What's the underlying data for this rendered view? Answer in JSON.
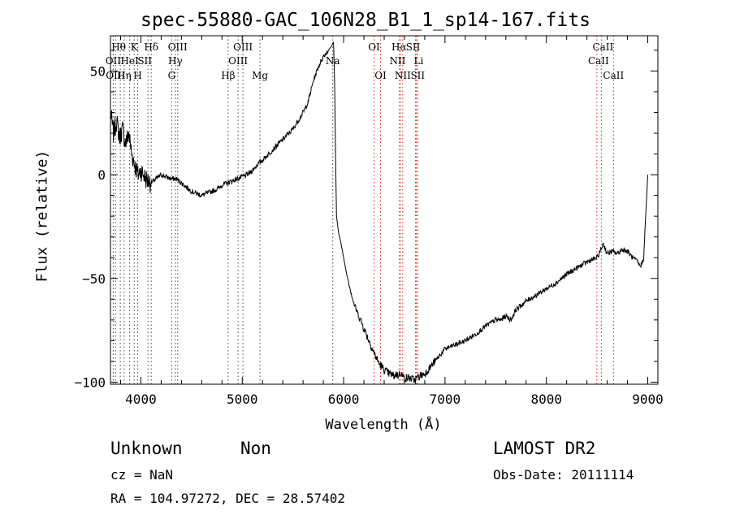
{
  "chart_data": {
    "type": "line",
    "title": "spec-55880-GAC_106N28_B1_1_sp14-167.fits",
    "xlabel": "Wavelength (Å)",
    "ylabel": "Flux (relative)",
    "xlim": [
      3700,
      9100
    ],
    "ylim": [
      -101,
      67
    ],
    "xticks": [
      4000,
      5000,
      6000,
      7000,
      8000,
      9000
    ],
    "yticks": [
      -100,
      -50,
      0,
      50
    ],
    "grid": false,
    "series": [
      {
        "x": [
          3700,
          3730,
          3760,
          3790,
          3820,
          3850,
          3880,
          3910,
          3940,
          3970,
          4000,
          4050,
          4100,
          4150,
          4200,
          4250,
          4300,
          4350,
          4400,
          4450,
          4500,
          4550,
          4600,
          4650,
          4700,
          4750,
          4800,
          4850,
          4900,
          4950,
          5000,
          5050,
          5100,
          5150,
          5200,
          5300,
          5400,
          5500,
          5600,
          5650,
          5700,
          5750,
          5800,
          5850,
          5880,
          5900,
          5910,
          5920,
          5930,
          5950,
          5970,
          6000,
          6030,
          6060,
          6100,
          6150,
          6200,
          6250,
          6300,
          6350,
          6400,
          6450,
          6500,
          6520,
          6540,
          6560,
          6580,
          6600,
          6650,
          6700,
          6750,
          6800,
          6850,
          6900,
          6950,
          7000,
          7100,
          7200,
          7300,
          7400,
          7500,
          7550,
          7600,
          7650,
          7700,
          7800,
          7900,
          8000,
          8100,
          8200,
          8300,
          8400,
          8450,
          8500,
          8540,
          8560,
          8600,
          8650,
          8700,
          8750,
          8800,
          8850,
          8900,
          8920,
          8940,
          8960,
          8980,
          9000
        ],
        "y": [
          30,
          20,
          26,
          18,
          22,
          15,
          20,
          10,
          5,
          0,
          2,
          -2,
          -4,
          -2,
          0,
          -1,
          -2,
          -2,
          -4,
          -6,
          -8,
          -9,
          -10,
          -9,
          -8,
          -7,
          -5,
          -4,
          -3,
          -2,
          -1,
          0,
          2,
          5,
          7,
          12,
          17,
          22,
          30,
          35,
          45,
          52,
          57,
          60,
          62,
          64,
          48,
          10,
          -20,
          -28,
          -32,
          -40,
          -48,
          -54,
          -62,
          -68,
          -74,
          -80,
          -86,
          -91,
          -94,
          -96,
          -97,
          -96,
          -97,
          -95,
          -97,
          -98,
          -98,
          -99,
          -97,
          -96,
          -93,
          -90,
          -87,
          -84,
          -82,
          -80,
          -77,
          -73,
          -70,
          -70,
          -68,
          -70,
          -65,
          -61,
          -58,
          -55,
          -52,
          -48,
          -45,
          -42,
          -41,
          -40,
          -36,
          -33,
          -38,
          -37,
          -38,
          -36,
          -37,
          -40,
          -42,
          -44,
          -43,
          -40,
          -20,
          0
        ]
      }
    ],
    "lines": [
      {
        "label": "Hθ",
        "x": 3797,
        "color": "#444444",
        "row": 0,
        "dx": -2
      },
      {
        "label": "K",
        "x": 3934,
        "color": "#444444",
        "row": 0,
        "dx": 0
      },
      {
        "label": "Hδ",
        "x": 4102,
        "color": "#444444",
        "row": 0,
        "dx": 0
      },
      {
        "label": "OIII",
        "x": 4363,
        "color": "#444444",
        "row": 0,
        "dx": 0
      },
      {
        "label": "OIII",
        "x": 5007,
        "color": "#444444",
        "row": 0,
        "dx": 0
      },
      {
        "label": "OI",
        "x": 6300,
        "color": "#cc2222",
        "row": 0,
        "dx": 0
      },
      {
        "label": "Hα",
        "x": 6563,
        "color": "#cc2222",
        "row": 0,
        "dx": -2
      },
      {
        "label": "SII",
        "x": 6717,
        "color": "#cc2222",
        "row": 0,
        "dx": -4
      },
      {
        "label": "CaII",
        "x": 8542,
        "color": "#cc2222",
        "row": 0,
        "dx": 2
      },
      {
        "label": "OII",
        "x": 3727,
        "color": "#444444",
        "row": 1,
        "dx": 0
      },
      {
        "label": "HeI",
        "x": 3889,
        "color": "#444444",
        "row": 1,
        "dx": 0
      },
      {
        "label": "SII",
        "x": 4070,
        "color": "#444444",
        "row": 1,
        "dx": -4
      },
      {
        "label": "Hγ",
        "x": 4340,
        "color": "#444444",
        "row": 1,
        "dx": 0
      },
      {
        "label": "OIII",
        "x": 4959,
        "color": "#444444",
        "row": 1,
        "dx": 0
      },
      {
        "label": "Na",
        "x": 5893,
        "color": "#444444",
        "row": 1,
        "dx": 0
      },
      {
        "label": "NII",
        "x": 6548,
        "color": "#cc2222",
        "row": 1,
        "dx": -2
      },
      {
        "label": "Li",
        "x": 6708,
        "color": "#cc2222",
        "row": 1,
        "dx": 4
      },
      {
        "label": "CaII",
        "x": 8498,
        "color": "#cc2222",
        "row": 1,
        "dx": 2
      },
      {
        "label": "OIII",
        "x": 3750,
        "color": "#444444",
        "row": 2,
        "dx": 0
      },
      {
        "label": "Hη",
        "x": 3835,
        "color": "#444444",
        "row": 2,
        "dx": 0
      },
      {
        "label": "H",
        "x": 3969,
        "color": "#444444",
        "row": 2,
        "dx": 0
      },
      {
        "label": "G",
        "x": 4304,
        "color": "#444444",
        "row": 2,
        "dx": 0
      },
      {
        "label": "Hβ",
        "x": 4861,
        "color": "#444444",
        "row": 2,
        "dx": 0
      },
      {
        "label": "Mg",
        "x": 5175,
        "color": "#444444",
        "row": 2,
        "dx": 0
      },
      {
        "label": "OI",
        "x": 6364,
        "color": "#cc2222",
        "row": 2,
        "dx": 0
      },
      {
        "label": "NII",
        "x": 6583,
        "color": "#cc2222",
        "row": 2,
        "dx": 0
      },
      {
        "label": "SII",
        "x": 6731,
        "color": "#cc2222",
        "row": 2,
        "dx": 0
      },
      {
        "label": "CaII",
        "x": 8662,
        "color": "#cc2222",
        "row": 2,
        "dx": 0
      }
    ]
  },
  "info": {
    "object_class": "Unknown",
    "object_subclass": "Non",
    "redshift": "cz = NaN",
    "coords": "RA = 104.97272, DEC =  28.57402",
    "survey": "LAMOST DR2",
    "obs_date": "Obs-Date: 20111114"
  }
}
